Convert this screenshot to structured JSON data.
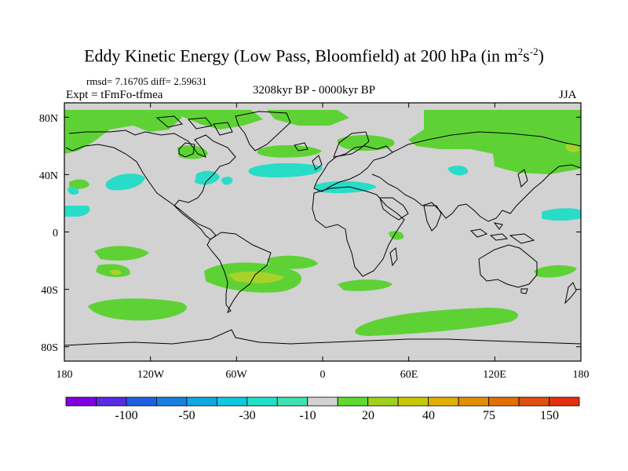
{
  "title": {
    "main": "Eddy Kinetic Energy (Low Pass, Bloomfield) at 200 hPa (in m",
    "sup1": "2",
    "mid": "s",
    "sup2": "-2",
    "close": ")"
  },
  "stats": "rmsd= 7.16705 diff= 2.59631",
  "experiment": "Expt = tFmFo-tfmea",
  "period": "3208kyr BP - 0000kyr BP",
  "season": "JJA",
  "map": {
    "projection": "cylindrical-equidistant",
    "lon_range": [
      -180,
      180
    ],
    "lat_range": [
      -90,
      90
    ],
    "background_color": "#d2d2d2",
    "y_ticks": [
      "80N",
      "40N",
      "0",
      "40S",
      "80S"
    ],
    "x_ticks": [
      "180",
      "120W",
      "60W",
      "0",
      "60E",
      "120E",
      "180"
    ]
  },
  "colorbar": {
    "colors": [
      "#8000e0",
      "#5a2ae0",
      "#2060e0",
      "#1880e0",
      "#10a8e0",
      "#10c8e0",
      "#20e0c8",
      "#40e0b0",
      "#d2d2d2",
      "#60d830",
      "#a0d020",
      "#c8c800",
      "#e0b000",
      "#e09000",
      "#e07000",
      "#e05010",
      "#e03010"
    ],
    "labels": [
      "-100",
      "-50",
      "-30",
      "-10",
      "20",
      "40",
      "75",
      "150"
    ]
  },
  "contour_colors": {
    "green": "#5ed235",
    "yellow_green": "#a8d22a",
    "cyan": "#28dcc8"
  }
}
